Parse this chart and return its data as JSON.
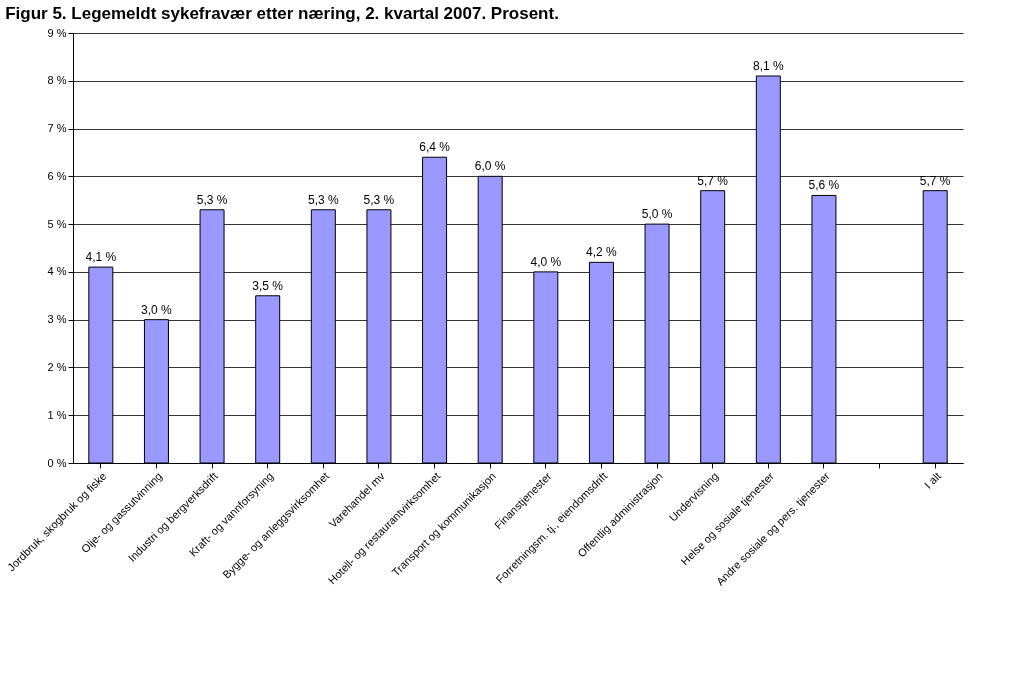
{
  "chart_data": {
    "type": "bar",
    "title": "Figur 5. Legemeldt sykefravær etter næring, 2. kvartal 2007. Prosent.",
    "categories": [
      "Jordbruk, skogbruk og fiske",
      "Olje- og gassutvinning",
      "Industri og bergverksdrift",
      "Kraft- og vannforsyning",
      "Bygge- og anleggsvirksomhet",
      "Varehandel mv",
      "Hotell- og restaurantvirksomhet",
      "Transport og kommunikasjon",
      "Finanstjenester",
      "Forretningsm. tj., eiendomsdrift",
      "Offentlig administrasjon",
      "Undervisning",
      "Helse og sosiale tjenester",
      "Andre sosiale og pers. tjenester",
      null,
      "I alt"
    ],
    "values": [
      4.1,
      3.0,
      5.3,
      3.5,
      5.3,
      5.3,
      6.4,
      6.0,
      4.0,
      4.2,
      5.0,
      5.7,
      8.1,
      5.6,
      null,
      5.7
    ],
    "value_labels": [
      "4,1 %",
      "3,0 %",
      "5,3 %",
      "3,5 %",
      "5,3 %",
      "5,3 %",
      "6,4 %",
      "6,0 %",
      "4,0 %",
      "4,2 %",
      "5,0 %",
      "5,7 %",
      "8,1 %",
      "5,6 %",
      null,
      "5,7 %"
    ],
    "color": "#9999ff",
    "ylim": [
      0,
      9
    ],
    "yticks": [
      {
        "value": 0,
        "label": "0 %"
      },
      {
        "value": 1,
        "label": "1 %"
      },
      {
        "value": 2,
        "label": "2 %"
      },
      {
        "value": 3,
        "label": "3 %"
      },
      {
        "value": 4,
        "label": "4 %"
      },
      {
        "value": 5,
        "label": "5 %"
      },
      {
        "value": 6,
        "label": "6 %"
      },
      {
        "value": 7,
        "label": "7 %"
      },
      {
        "value": 8,
        "label": "8 %"
      },
      {
        "value": 9,
        "label": "9 %"
      }
    ],
    "grid": "y"
  }
}
